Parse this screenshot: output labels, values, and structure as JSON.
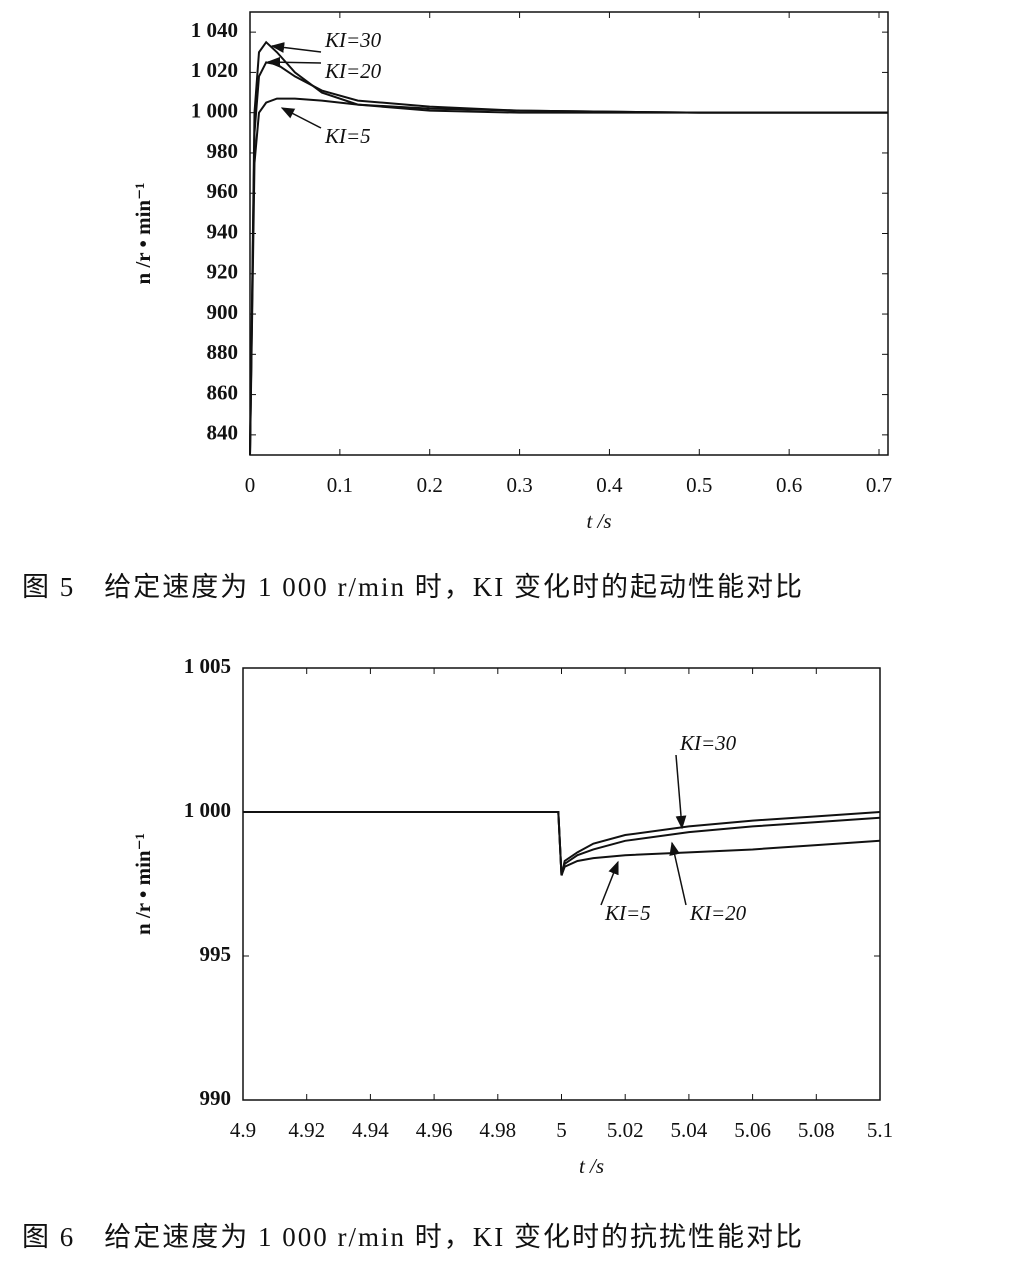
{
  "chart_data": [
    {
      "type": "line",
      "caption": "图 5　给定速度为 1 000 r/min 时，KI 变化时的起动性能对比",
      "x_label": "t /s",
      "y_label": "n /r • min⁻¹",
      "x": [
        0,
        0.005,
        0.01,
        0.018,
        0.03,
        0.05,
        0.08,
        0.12,
        0.2,
        0.3,
        0.5,
        0.71
      ],
      "series": [
        {
          "name": "KI=30",
          "color": "#111111",
          "values": [
            830,
            1000,
            1030,
            1035,
            1030,
            1020,
            1010,
            1004,
            1001,
            1000,
            1000,
            1000
          ]
        },
        {
          "name": "KI=20",
          "color": "#111111",
          "values": [
            830,
            990,
            1018,
            1025,
            1024,
            1018,
            1011,
            1006,
            1003,
            1001,
            1000,
            1000
          ]
        },
        {
          "name": "KI=5",
          "color": "#111111",
          "values": [
            830,
            975,
            1000,
            1005,
            1007,
            1007,
            1006,
            1004,
            1002,
            1001,
            1000,
            1000
          ]
        }
      ],
      "xlim": [
        0,
        0.71
      ],
      "xticks": [
        0,
        0.1,
        0.2,
        0.3,
        0.4,
        0.5,
        0.6,
        0.7
      ],
      "ylim": [
        830,
        1050
      ],
      "yticks": [
        840,
        860,
        880,
        900,
        920,
        940,
        960,
        980,
        {
          "value": 1000,
          "label": "1 000"
        },
        {
          "value": 1020,
          "label": "1 020"
        },
        {
          "value": 1040,
          "label": "1 040"
        }
      ]
    },
    {
      "type": "line",
      "caption": "图 6　给定速度为 1 000 r/min 时，KI 变化时的抗扰性能对比",
      "x_label": "t /s",
      "y_label": "n /r • min⁻¹",
      "x": [
        4.9,
        4.999,
        5.0,
        5.001,
        5.005,
        5.01,
        5.02,
        5.04,
        5.06,
        5.08,
        5.1
      ],
      "series": [
        {
          "name": "KI=30",
          "color": "#111111",
          "values": [
            1000,
            1000,
            997.8,
            998.3,
            998.6,
            998.9,
            999.2,
            999.5,
            999.7,
            999.85,
            1000
          ]
        },
        {
          "name": "KI=20",
          "color": "#111111",
          "values": [
            1000,
            1000,
            997.8,
            998.2,
            998.5,
            998.7,
            999.0,
            999.3,
            999.5,
            999.65,
            999.8
          ]
        },
        {
          "name": "KI=5",
          "color": "#111111",
          "values": [
            1000,
            1000,
            997.8,
            998.1,
            998.3,
            998.4,
            998.5,
            998.6,
            998.7,
            998.85,
            999.0
          ]
        }
      ],
      "xlim": [
        4.9,
        5.1
      ],
      "xticks": [
        4.9,
        4.92,
        4.94,
        4.96,
        4.98,
        5,
        5.02,
        5.04,
        5.06,
        5.08,
        5.1
      ],
      "ylim": [
        990,
        1005
      ],
      "yticks": [
        990,
        995,
        {
          "value": 1000,
          "label": "1 000"
        },
        {
          "value": 1005,
          "label": "1 005"
        }
      ]
    }
  ]
}
